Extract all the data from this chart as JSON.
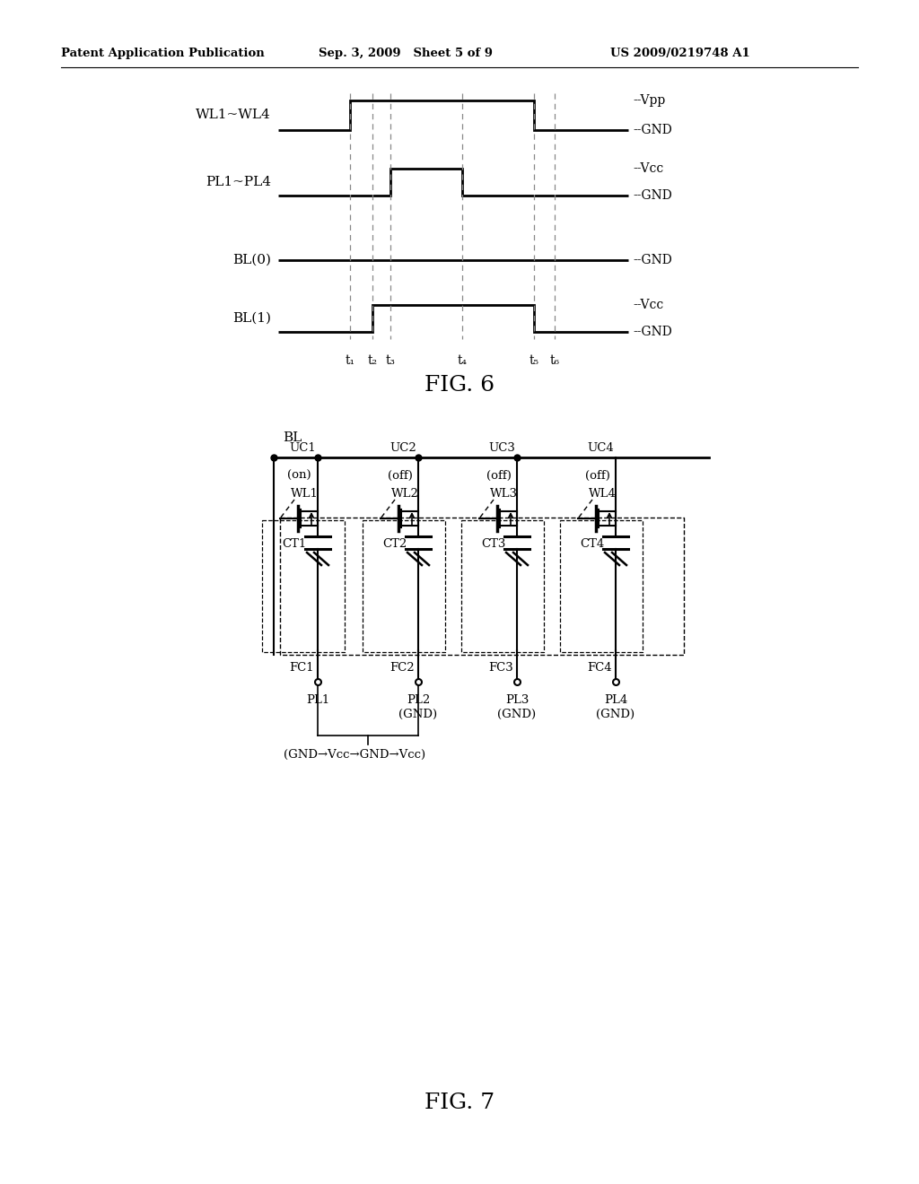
{
  "header_left": "Patent Application Publication",
  "header_mid": "Sep. 3, 2009   Sheet 5 of 9",
  "header_right": "US 2009/0219748 A1",
  "fig6_title": "FIG. 6",
  "fig7_title": "FIG. 7",
  "bg_color": "#ffffff",
  "line_color": "#000000",
  "dashed_color": "#888888",
  "time_labels": [
    "t₁",
    "t₂",
    "t₃",
    "t₄",
    "t₅",
    "t₆"
  ],
  "signals": [
    "WL1~WL4",
    "PL1~PL4",
    "BL(0)",
    "BL(1)"
  ],
  "cell_labels": [
    "UC1",
    "UC2",
    "UC3",
    "UC4"
  ],
  "wl_labels": [
    "WL1",
    "WL2",
    "WL3",
    "WL4"
  ],
  "state_labels": [
    "(on)",
    "(off)",
    "(off)",
    "(off)"
  ],
  "ct_labels": [
    "CT1",
    "CT2",
    "CT3",
    "CT4"
  ],
  "fc_labels": [
    "FC1",
    "FC2",
    "FC3",
    "FC4"
  ],
  "pl_labels": [
    "PL1",
    "PL2",
    "PL3",
    "PL4"
  ],
  "pl_states": [
    "",
    "(GND)",
    "(GND)",
    "(GND)"
  ]
}
